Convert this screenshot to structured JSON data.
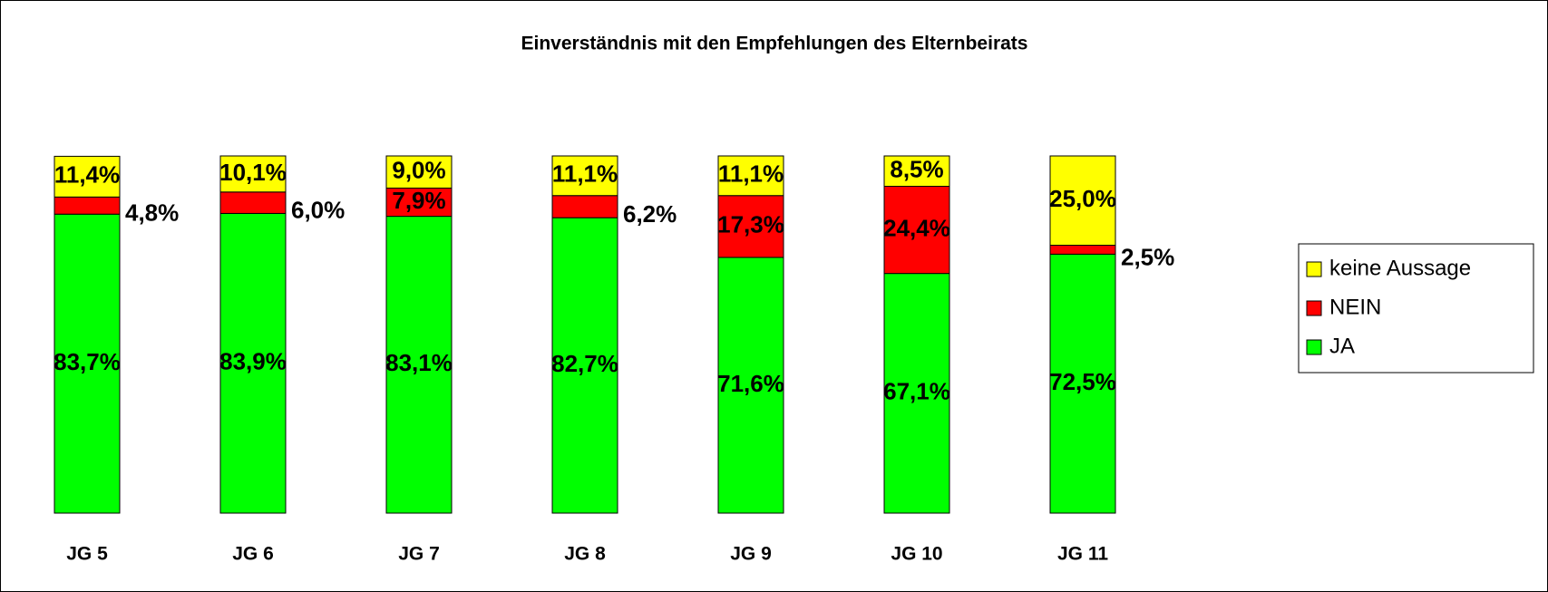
{
  "chart_data": {
    "type": "stacked_bar",
    "title": "Einverständnis mit den Empfehlungen des Elternbeirats",
    "categories": [
      "JG 5",
      "JG 6",
      "JG 7",
      "JG 8",
      "JG 9",
      "JG 10",
      "JG 11"
    ],
    "series": [
      {
        "name": "JA",
        "color": "#00ff00",
        "values": [
          83.7,
          83.9,
          83.1,
          82.7,
          71.6,
          67.1,
          72.5
        ],
        "value_labels": [
          "83,7%",
          "83,9%",
          "83,1%",
          "82,7%",
          "71,6%",
          "67,1%",
          "72,5%"
        ]
      },
      {
        "name": "NEIN",
        "color": "#ff0000",
        "values": [
          4.8,
          6.0,
          7.9,
          6.2,
          17.3,
          24.4,
          2.5
        ],
        "value_labels": [
          "4,8%",
          "6,0%",
          "7,9%",
          "6,2%",
          "17,3%",
          "24,4%",
          "2,5%"
        ]
      },
      {
        "name": "keine Aussage",
        "color": "#ffff00",
        "values": [
          11.4,
          10.1,
          9.0,
          11.1,
          11.1,
          8.5,
          25.0
        ],
        "value_labels": [
          "11,4%",
          "10,1%",
          "9,0%",
          "11,1%",
          "11,1%",
          "8,5%",
          "25,0%"
        ]
      }
    ],
    "legend": "right"
  }
}
